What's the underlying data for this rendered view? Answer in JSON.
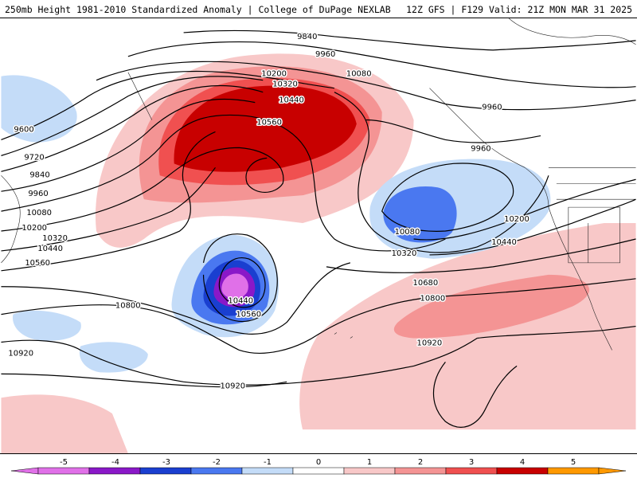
{
  "header": {
    "left": "250mb Height 1981-2010 Standardized Anomaly | College of DuPage NEXLAB",
    "right": "12Z GFS | F129 Valid: 21Z MON MAR 31 2025"
  },
  "anomaly_colors": {
    "-5": "#e070e8",
    "-4": "#8a18c8",
    "-3": "#1a3fd0",
    "-2": "#4a78f0",
    "-1": "#c4dcf8",
    "0": "#ffffff",
    "1": "#f8c8c8",
    "2": "#f49494",
    "3": "#f05050",
    "4": "#c80000",
    "5": "#ff9900"
  },
  "colorbar": {
    "ticks": [
      "-5",
      "-4",
      "-3",
      "-2",
      "-1",
      "0",
      "1",
      "2",
      "3",
      "4",
      "5"
    ]
  },
  "contour_labels": [
    "9840",
    "9960",
    "10080",
    "9960",
    "9600",
    "9720",
    "9840",
    "9960",
    "10080",
    "10200",
    "10320",
    "10440",
    "10560",
    "10200",
    "10320",
    "10440",
    "10560",
    "9960",
    "10080",
    "10200",
    "10440",
    "10320",
    "10680",
    "10800",
    "10800",
    "10440",
    "10560",
    "10920",
    "10920",
    "10920"
  ]
}
